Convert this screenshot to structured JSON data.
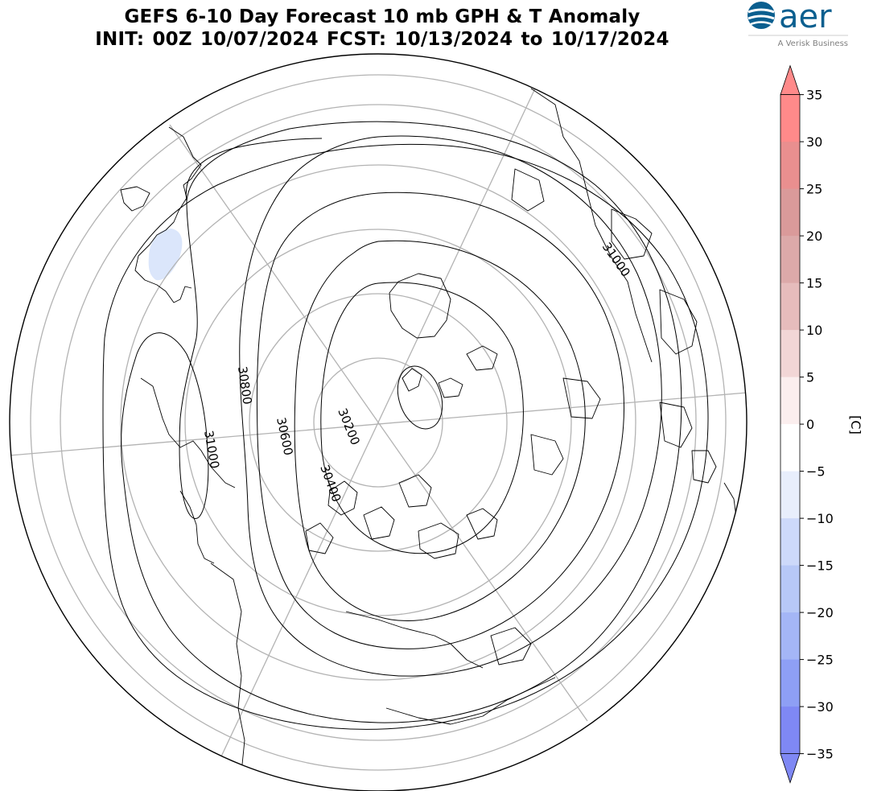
{
  "title": {
    "line1": "GEFS 6-10 Day Forecast 10 mb GPH & T Anomaly",
    "line2": "INIT: 00Z 10/07/2024     FCST: 10/13/2024 to 10/17/2024"
  },
  "logo": {
    "brand": "aer",
    "tagline": "A Verisk Business",
    "brand_color": "#0b5f8f"
  },
  "colorbar": {
    "unit_label": "[C]",
    "ticks": [
      "35",
      "30",
      "25",
      "20",
      "15",
      "10",
      "5",
      "0",
      "−5",
      "−10",
      "−15",
      "−20",
      "−25",
      "−30",
      "−35"
    ],
    "colors": [
      "#ff8a8a",
      "#e98f8f",
      "#da9a9a",
      "#dca9a9",
      "#e6bcbc",
      "#f2d6d6",
      "#fbeeee",
      "#ffffff",
      "#ffffff",
      "#e8eefc",
      "#cdd9fa",
      "#b7c8f7",
      "#a4b6f6",
      "#8e9ff5",
      "#7f88f4"
    ]
  },
  "contours": {
    "labels": [
      "31000",
      "30800",
      "31000",
      "30600",
      "30400",
      "30200"
    ]
  }
}
